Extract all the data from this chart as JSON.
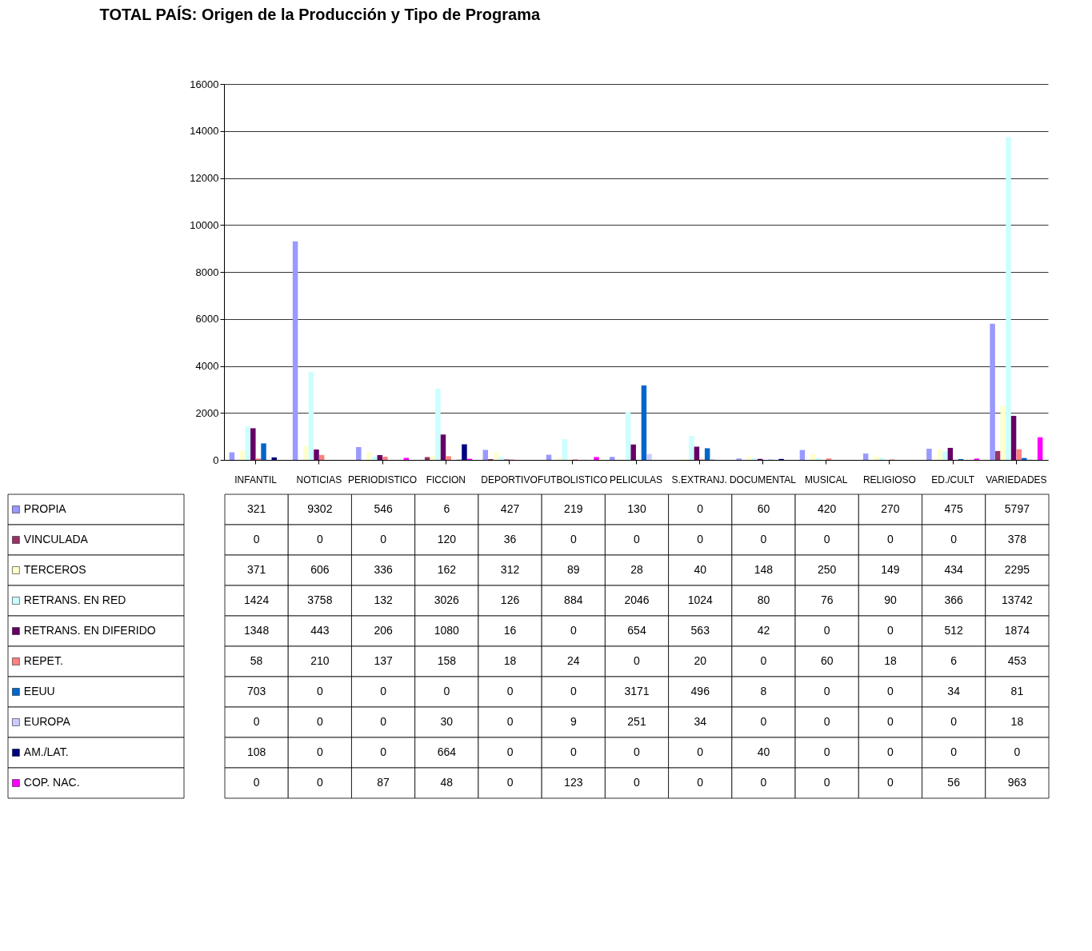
{
  "chart_data": {
    "type": "bar",
    "title": "TOTAL PAÍS: Origen de la Producción y Tipo de Programa",
    "categories": [
      "INFANTIL",
      "NOTICIAS",
      "PERIODISTICO",
      "FICCION",
      "DEPORTIVO",
      "FUTBOLISTICO",
      "PELICULAS",
      "S.EXTRANJ.",
      "DOCUMENTAL",
      "MUSICAL",
      "RELIGIOSO",
      "ED./CULT",
      "VARIEDADES"
    ],
    "series": [
      {
        "name": "PROPIA",
        "color": "#9999ff",
        "values": [
          321,
          9302,
          546,
          6,
          427,
          219,
          130,
          0,
          60,
          420,
          270,
          475,
          5797
        ]
      },
      {
        "name": "VINCULADA",
        "color": "#993366",
        "values": [
          0,
          0,
          0,
          120,
          36,
          0,
          0,
          0,
          0,
          0,
          0,
          0,
          378
        ]
      },
      {
        "name": "TERCEROS",
        "color": "#ffffcc",
        "values": [
          371,
          606,
          336,
          162,
          312,
          89,
          28,
          40,
          148,
          250,
          149,
          434,
          2295
        ]
      },
      {
        "name": "RETRANS. EN RED",
        "color": "#ccffff",
        "values": [
          1424,
          3758,
          132,
          3026,
          126,
          884,
          2046,
          1024,
          80,
          76,
          90,
          366,
          13742
        ]
      },
      {
        "name": "RETRANS. EN DIFERIDO",
        "color": "#660066",
        "values": [
          1348,
          443,
          206,
          1080,
          16,
          0,
          654,
          563,
          42,
          0,
          0,
          512,
          1874
        ]
      },
      {
        "name": "REPET.",
        "color": "#ff8080",
        "values": [
          58,
          210,
          137,
          158,
          18,
          24,
          0,
          20,
          0,
          60,
          18,
          6,
          453
        ]
      },
      {
        "name": "EEUU",
        "color": "#0066cc",
        "values": [
          703,
          0,
          0,
          0,
          0,
          0,
          3171,
          496,
          8,
          0,
          0,
          34,
          81
        ]
      },
      {
        "name": "EUROPA",
        "color": "#ccccff",
        "values": [
          0,
          0,
          0,
          30,
          0,
          9,
          251,
          34,
          0,
          0,
          0,
          0,
          18
        ]
      },
      {
        "name": "AM./LAT.",
        "color": "#000080",
        "values": [
          108,
          0,
          0,
          664,
          0,
          0,
          0,
          0,
          40,
          0,
          0,
          0,
          0
        ]
      },
      {
        "name": "COP. NAC.",
        "color": "#ff00ff",
        "values": [
          0,
          0,
          87,
          48,
          0,
          123,
          0,
          0,
          0,
          0,
          0,
          56,
          963
        ]
      }
    ],
    "ylim": [
      0,
      16000
    ],
    "yticks": [
      0,
      2000,
      4000,
      6000,
      8000,
      10000,
      12000,
      14000,
      16000
    ],
    "grid": "y",
    "legend": "bottom",
    "data_labels": true
  }
}
